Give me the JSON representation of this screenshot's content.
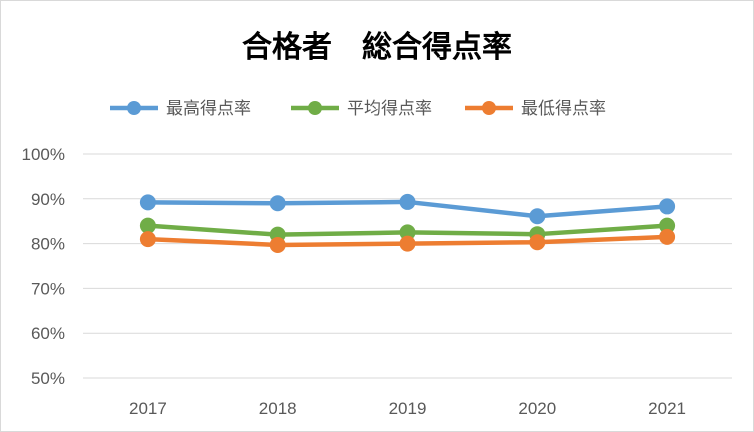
{
  "chart_data": {
    "type": "line",
    "title": "合格者　総合得点率",
    "x": [
      "2017",
      "2018",
      "2019",
      "2020",
      "2021"
    ],
    "ylim": [
      50,
      100
    ],
    "yticks": [
      50,
      60,
      70,
      80,
      90,
      100
    ],
    "ytick_labels": [
      "50%",
      "60%",
      "70%",
      "80%",
      "90%",
      "100%"
    ],
    "grid": true,
    "legend_position": "top",
    "series": [
      {
        "name": "最高得点率",
        "color": "#5b9bd5",
        "values": [
          89.2,
          89.0,
          89.3,
          86.1,
          88.3
        ]
      },
      {
        "name": "平均得点率",
        "color": "#70ad47",
        "values": [
          84.0,
          82.0,
          82.5,
          82.1,
          84.0
        ]
      },
      {
        "name": "最低得点率",
        "color": "#ed7d31",
        "values": [
          81.0,
          79.7,
          80.0,
          80.3,
          81.5
        ]
      }
    ]
  }
}
